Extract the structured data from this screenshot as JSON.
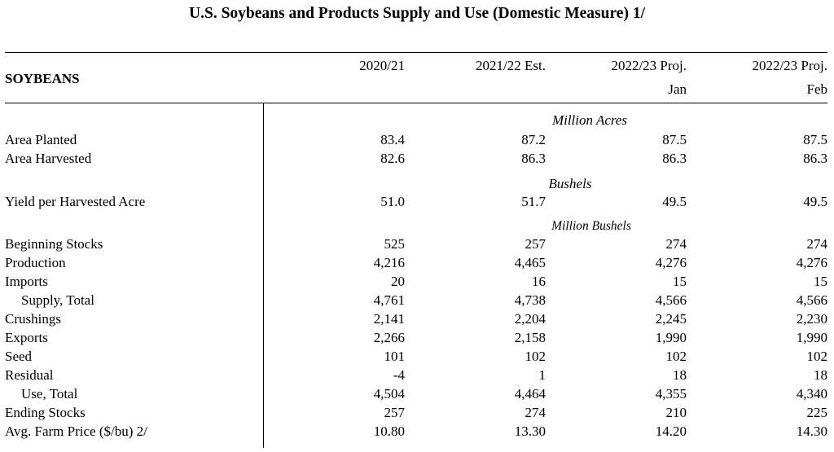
{
  "title": "U.S. Soybeans and Products Supply and Use (Domestic Measure)  1/",
  "section_label": "SOYBEANS",
  "columns": [
    {
      "line1": "2020/21",
      "line2": ""
    },
    {
      "line1": "2021/22 Est.",
      "line2": ""
    },
    {
      "line1": "2022/23 Proj.",
      "line2": "Jan"
    },
    {
      "line1": "2022/23 Proj.",
      "line2": "Feb"
    }
  ],
  "units": {
    "acres": "Million Acres",
    "bushels": "Bushels",
    "million_bushels": "Million Bushels"
  },
  "rows": [
    {
      "label": "Area Planted",
      "values": [
        "83.4",
        "87.2",
        "87.5",
        "87.5"
      ]
    },
    {
      "label": "Area Harvested",
      "values": [
        "82.6",
        "86.3",
        "86.3",
        "86.3"
      ]
    },
    {
      "label": "Yield per Harvested Acre",
      "values": [
        "51.0",
        "51.7",
        "49.5",
        "49.5"
      ]
    },
    {
      "label": "Beginning Stocks",
      "values": [
        "525",
        "257",
        "274",
        "274"
      ]
    },
    {
      "label": "Production",
      "values": [
        "4,216",
        "4,465",
        "4,276",
        "4,276"
      ]
    },
    {
      "label": "Imports",
      "values": [
        "20",
        "16",
        "15",
        "15"
      ]
    },
    {
      "label": "Supply, Total",
      "values": [
        "4,761",
        "4,738",
        "4,566",
        "4,566"
      ]
    },
    {
      "label": "Crushings",
      "values": [
        "2,141",
        "2,204",
        "2,245",
        "2,230"
      ]
    },
    {
      "label": "Exports",
      "values": [
        "2,266",
        "2,158",
        "1,990",
        "1,990"
      ]
    },
    {
      "label": "Seed",
      "values": [
        "101",
        "102",
        "102",
        "102"
      ]
    },
    {
      "label": "Residual",
      "values": [
        "-4",
        "1",
        "18",
        "18"
      ]
    },
    {
      "label": "Use, Total",
      "values": [
        "4,504",
        "4,464",
        "4,355",
        "4,340"
      ]
    },
    {
      "label": "Ending Stocks",
      "values": [
        "257",
        "274",
        "210",
        "225"
      ]
    },
    {
      "label": "Avg. Farm Price ($/bu)  2/",
      "values": [
        "10.80",
        "13.30",
        "14.20",
        "14.30"
      ]
    }
  ]
}
